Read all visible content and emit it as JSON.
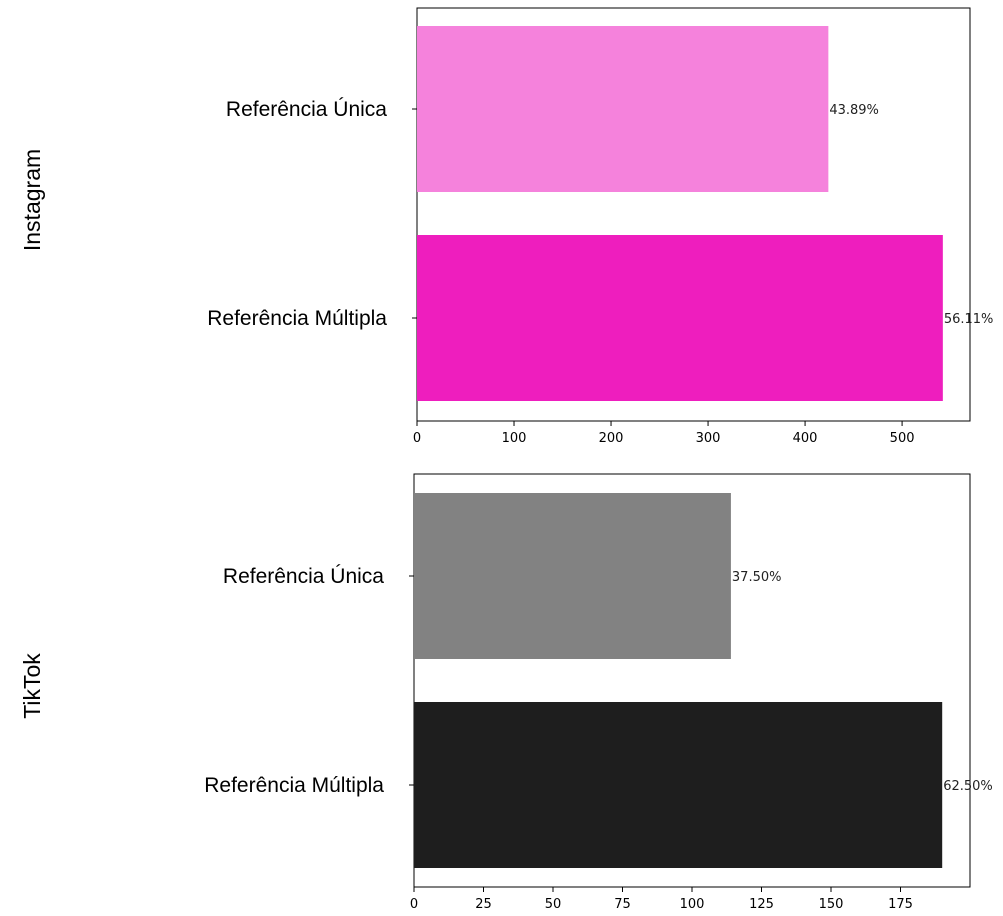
{
  "chart_data": [
    {
      "type": "bar",
      "orientation": "horizontal",
      "row_label": "Instagram",
      "categories": [
        "Referência Única",
        "Referência Múltipla"
      ],
      "values": [
        424,
        542
      ],
      "data_labels": [
        "43.89%",
        "56.11%"
      ],
      "colors": [
        "#f582dc",
        "#ee1ebe"
      ],
      "xlim": [
        0,
        570
      ],
      "xticks": [
        0,
        100,
        200,
        300,
        400,
        500
      ],
      "grid": false
    },
    {
      "type": "bar",
      "orientation": "horizontal",
      "row_label": "TikTok",
      "categories": [
        "Referência Única",
        "Referência Múltipla"
      ],
      "values": [
        114,
        190
      ],
      "data_labels": [
        "37.50%",
        "62.50%"
      ],
      "colors": [
        "#828282",
        "#1e1e1e"
      ],
      "xlim": [
        0,
        200
      ],
      "xticks": [
        0,
        25,
        50,
        75,
        100,
        125,
        150,
        175
      ],
      "grid": false
    }
  ]
}
